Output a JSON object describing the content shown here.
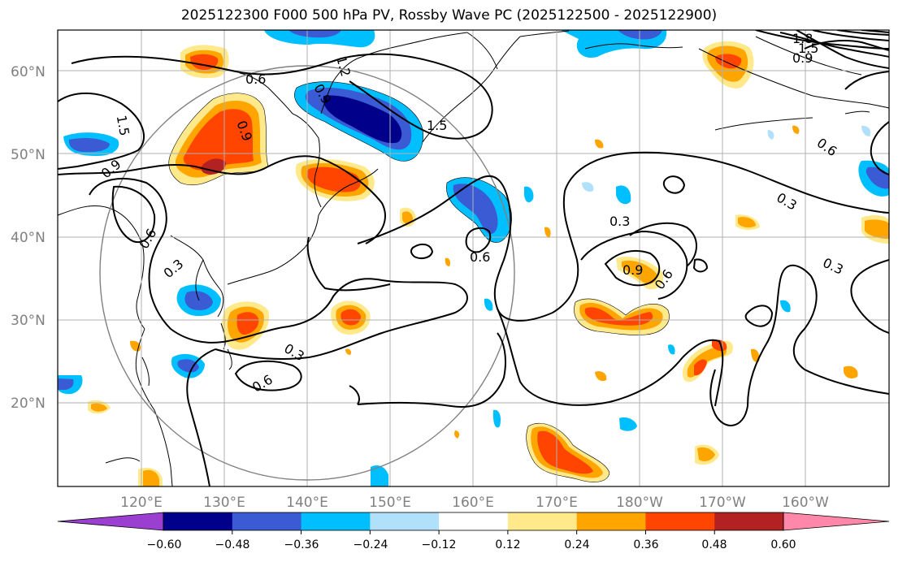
{
  "title": "2025122300 F000 500 hPa PV, Rossby Wave PC (2025122500 - 2025122900)",
  "axes": {
    "lon_ticks": [
      "120°E",
      "130°E",
      "140°E",
      "150°E",
      "160°E",
      "170°E",
      "180°W",
      "170°W",
      "160°W"
    ],
    "lat_ticks": [
      "60°N",
      "50°N",
      "40°N",
      "30°N",
      "20°N"
    ]
  },
  "colorbar": {
    "colors": [
      "#9a3fd0",
      "#00008b",
      "#3a5bd3",
      "#00bfff",
      "#b0e0fa",
      "#ffffff",
      "#ffe98a",
      "#ffa500",
      "#ff4500",
      "#b22222",
      "#ff88aa"
    ],
    "tick_labels": [
      "−0.60",
      "−0.48",
      "−0.36",
      "−0.24",
      "−0.12",
      "0.12",
      "0.24",
      "0.36",
      "0.48",
      "0.60"
    ]
  },
  "contour_labels": [
    "0.6",
    "0.9",
    "1.5",
    "1.5",
    "1.2",
    "0.9",
    "0.3",
    "0.6",
    "0.3",
    "0.9",
    "0.6",
    "0.3",
    "0.3",
    "0.3",
    "0.6",
    "0.6",
    "0.9",
    "1.8",
    "1.5",
    "0.9",
    "0.6"
  ],
  "colors": {
    "grid": "#b0b0b0",
    "tick_label": "#808080",
    "circle": "#808080",
    "coast": "#000000"
  }
}
